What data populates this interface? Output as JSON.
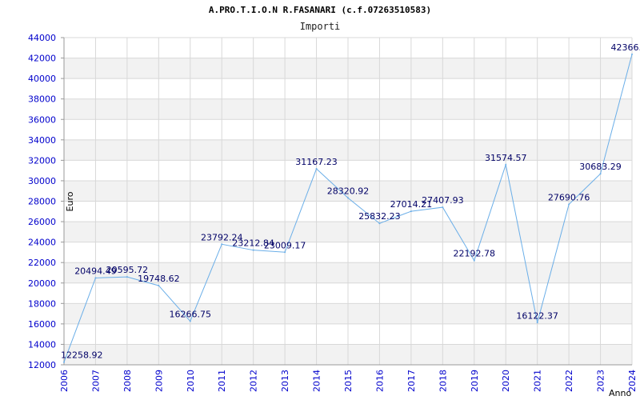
{
  "chart_data": {
    "type": "line",
    "title": "A.PRO.T.I.O.N R.FASANARI (c.f.07263510583)",
    "subtitle": "Importi",
    "xlabel": "Anno",
    "ylabel": "Euro",
    "ylim": [
      12000,
      44000
    ],
    "ytick_step": 2000,
    "grid": true,
    "legend": "none",
    "line_color": "#6aaee8",
    "band_color": "#f2f2f2",
    "x": [
      "2006",
      "2007",
      "2008",
      "2009",
      "2010",
      "2011",
      "2012",
      "2013",
      "2014",
      "2015",
      "2016",
      "2017",
      "2018",
      "2019",
      "2020",
      "2021",
      "2022",
      "2023",
      "2024"
    ],
    "values": [
      12258.92,
      20494.49,
      20595.72,
      19748.62,
      16266.75,
      23792.24,
      23212.84,
      23009.17,
      31167.23,
      28320.92,
      25832.23,
      27014.21,
      27407.93,
      22192.78,
      31574.57,
      16122.37,
      27690.76,
      30683.29,
      42366.0
    ],
    "value_labels": [
      "12258.92",
      "20494.49",
      "20595.72",
      "19748.62",
      "16266.75",
      "23792.24",
      "23212.84",
      "23009.17",
      "31167.23",
      "28320.92",
      "25832.23",
      "27014.21",
      "27407.93",
      "22192.78",
      "31574.57",
      "16122.37",
      "27690.76",
      "30683.29",
      "42366."
    ],
    "y_ticks": [
      "12000",
      "14000",
      "16000",
      "18000",
      "20000",
      "22000",
      "24000",
      "26000",
      "28000",
      "30000",
      "32000",
      "34000",
      "36000",
      "38000",
      "40000",
      "42000",
      "44000"
    ]
  }
}
